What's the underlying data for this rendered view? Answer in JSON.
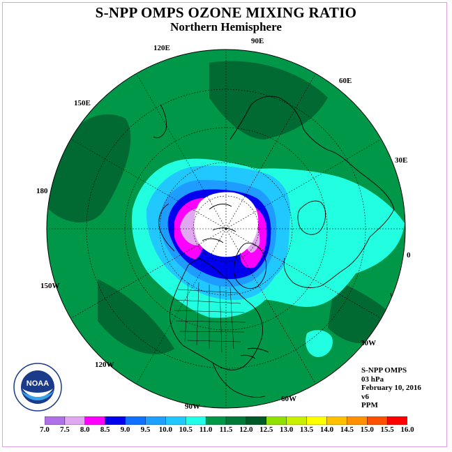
{
  "header": {
    "title": "S-NPP OMPS OZONE MIXING RATIO",
    "subtitle": "Northern Hemisphere"
  },
  "longitude_labels": [
    "90E",
    "60E",
    "30E",
    "0",
    "30W",
    "60W",
    "90W",
    "120W",
    "150W",
    "180",
    "150E",
    "120E"
  ],
  "info": {
    "instrument": "S-NPP OMPS",
    "level": "03 hPa",
    "date": "February 10, 2016",
    "version": "v6",
    "units": "PPM"
  },
  "logo": {
    "name": "noaa-logo",
    "text": "NOAA"
  },
  "colorbar": {
    "labels": [
      "7.0",
      "7.5",
      "8.0",
      "8.5",
      "9.0",
      "9.5",
      "10.0",
      "10.5",
      "11.0",
      "11.5",
      "12.0",
      "12.5",
      "13.0",
      "13.5",
      "14.0",
      "14.5",
      "15.0",
      "15.5",
      "16.0"
    ],
    "colors": [
      "#b070e8",
      "#e0a8f0",
      "#ff00ff",
      "#0000ee",
      "#1070ff",
      "#1ea0ff",
      "#20c8ff",
      "#20ffe8",
      "#009848",
      "#007a38",
      "#005a28",
      "#90e000",
      "#c8f000",
      "#ffff00",
      "#ffc000",
      "#ff9000",
      "#ff5000",
      "#ff0000",
      "#8a5a3c"
    ]
  },
  "map_colors": {
    "ocean_green": "#009848",
    "dark_green": "#006a32",
    "cyan": "#22ffe0",
    "light_blue": "#20c8ff",
    "blue": "#1e9cff",
    "deep_blue": "#0000ee",
    "magenta": "#ff00ff",
    "lavender": "#e0a8f0",
    "white": "#ffffff"
  }
}
